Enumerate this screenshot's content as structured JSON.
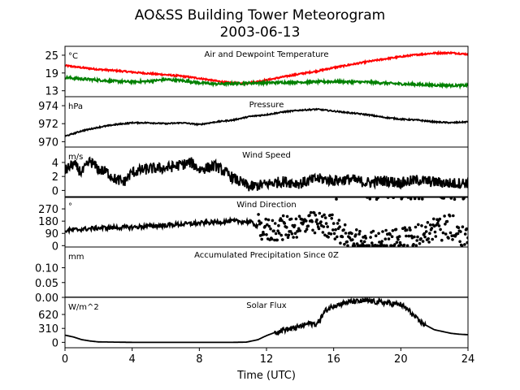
{
  "figure": {
    "title_line1": "AO&SS Building Tower Meteorogram",
    "title_line2": "2003-06-13",
    "xlabel": "Time (UTC)",
    "colors": {
      "temperature": "#ff0000",
      "dewpoint": "#008000",
      "default": "#000000"
    }
  },
  "chart_data": [
    {
      "type": "line",
      "title": "Air and Dewpoint Temperature",
      "ylabel": "°C",
      "ylim": [
        11,
        28
      ],
      "yticks": [
        13,
        19,
        25
      ],
      "xlim": [
        0,
        24
      ],
      "series": [
        {
          "color": "#ff0000",
          "x": [
            0,
            1,
            2,
            3,
            4,
            5,
            6,
            7,
            8,
            9,
            10,
            10.5,
            11,
            12,
            13,
            14,
            15,
            16,
            17,
            18,
            19,
            20,
            21,
            22,
            23,
            24
          ],
          "values": [
            21.5,
            20.8,
            20.2,
            19.8,
            19.3,
            18.8,
            18.4,
            17.9,
            17.2,
            16.3,
            15.6,
            15.4,
            15.7,
            16.6,
            17.7,
            18.7,
            19.6,
            20.8,
            21.8,
            22.8,
            23.7,
            24.5,
            25.2,
            25.7,
            25.8,
            25.3
          ],
          "noise": 0.25
        },
        {
          "color": "#008000",
          "x": [
            0,
            1,
            2,
            3,
            4,
            5,
            6,
            7,
            8,
            9,
            10,
            11,
            12,
            13,
            14,
            15,
            16,
            17,
            18,
            19,
            20,
            21,
            22,
            23,
            24
          ],
          "values": [
            17.5,
            17.0,
            16.6,
            16.2,
            16.0,
            16.2,
            16.8,
            16.4,
            15.7,
            15.3,
            15.4,
            15.6,
            15.7,
            15.8,
            15.9,
            16.0,
            16.1,
            16.0,
            15.9,
            15.6,
            15.3,
            15.1,
            14.9,
            14.8,
            14.8
          ],
          "noise": 0.4
        }
      ]
    },
    {
      "type": "line",
      "title": "Pressure",
      "ylabel": "hPa",
      "ylim": [
        969.4,
        975.0
      ],
      "yticks": [
        970,
        972,
        974
      ],
      "xlim": [
        0,
        24
      ],
      "series": [
        {
          "color": "#000000",
          "x": [
            0,
            1,
            2,
            3,
            4,
            5,
            6,
            7,
            8,
            9,
            10,
            11,
            12,
            13,
            14,
            15,
            16,
            17,
            18,
            19,
            20,
            21,
            22,
            23,
            24
          ],
          "values": [
            970.6,
            971.2,
            971.6,
            971.9,
            972.1,
            972.1,
            972.0,
            972.1,
            971.9,
            972.2,
            972.4,
            972.8,
            973.0,
            973.3,
            973.5,
            973.6,
            973.4,
            973.2,
            973.0,
            972.7,
            972.5,
            972.4,
            972.2,
            972.1,
            972.2
          ],
          "noise": 0.07
        }
      ]
    },
    {
      "type": "line",
      "title": "Wind Speed",
      "ylabel": "m/s",
      "ylim": [
        -1,
        6.2
      ],
      "yticks": [
        0,
        2,
        4
      ],
      "xlim": [
        0,
        24
      ],
      "series": [
        {
          "color": "#000000",
          "x": [
            0,
            0.5,
            1,
            1.5,
            2,
            2.5,
            3,
            3.5,
            4,
            5,
            6,
            7,
            7.5,
            8,
            9,
            10,
            11,
            12,
            13,
            14,
            15,
            16,
            17,
            18,
            19,
            20,
            21,
            22,
            23,
            24
          ],
          "values": [
            2.8,
            3.8,
            2.5,
            4.2,
            3.0,
            2.6,
            1.6,
            1.2,
            2.6,
            3.1,
            3.2,
            3.7,
            4.0,
            3.0,
            3.5,
            1.8,
            0.5,
            0.9,
            1.3,
            1.0,
            1.7,
            1.4,
            1.6,
            1.1,
            1.4,
            1.1,
            1.5,
            1.2,
            1.0,
            1.1
          ],
          "noise": 0.8
        }
      ]
    },
    {
      "type": "scatter",
      "title": "Wind Direction",
      "ylabel": "°",
      "ylim": [
        -10,
        360
      ],
      "yticks": [
        0,
        90,
        180,
        270
      ],
      "xlim": [
        0,
        24
      ],
      "series": [
        {
          "color": "#000000",
          "x": [
            0,
            2,
            4,
            6,
            8,
            10,
            11,
            12,
            13,
            14,
            15,
            16,
            17,
            18,
            19,
            20,
            21,
            22,
            23,
            24
          ],
          "values": [
            110,
            130,
            135,
            150,
            165,
            180,
            175,
            110,
            130,
            150,
            160,
            140,
            40,
            30,
            30,
            40,
            70,
            120,
            140,
            60
          ],
          "spread": 25,
          "scatter_from": 11.5
        }
      ]
    },
    {
      "type": "line",
      "title": "Accumulated Precipitation Since 0Z",
      "ylabel": "mm",
      "ylim": [
        0,
        0.17
      ],
      "yticks": [
        0.0,
        0.05,
        0.1
      ],
      "ytick_labels": [
        "0.00",
        "0.05",
        "0.10"
      ],
      "xlim": [
        0,
        24
      ],
      "series": [
        {
          "color": "#000000",
          "x": [
            0,
            24
          ],
          "values": [
            0,
            0
          ],
          "noise": 0
        }
      ]
    },
    {
      "type": "line",
      "title": "Solar Flux",
      "ylabel": "W/m^2",
      "ylim": [
        -120,
        1000
      ],
      "yticks": [
        0,
        310,
        620
      ],
      "xlim": [
        0,
        24
      ],
      "xticks": [
        0,
        4,
        8,
        12,
        16,
        20,
        24
      ],
      "series": [
        {
          "color": "#000000",
          "x": [
            0,
            0.5,
            1,
            1.5,
            2,
            4,
            6,
            8,
            10,
            10.8,
            11.5,
            12,
            12.5,
            13,
            13.5,
            14,
            14.5,
            15,
            15.5,
            16,
            16.5,
            17,
            17.5,
            18,
            18.5,
            19,
            19.5,
            20,
            20.5,
            21,
            21.5,
            22,
            22.5,
            23,
            23.5,
            24
          ],
          "values": [
            160,
            120,
            60,
            30,
            10,
            0,
            0,
            0,
            0,
            5,
            60,
            150,
            220,
            280,
            300,
            350,
            420,
            400,
            700,
            820,
            860,
            900,
            910,
            920,
            900,
            880,
            860,
            840,
            700,
            500,
            380,
            280,
            240,
            200,
            180,
            170
          ],
          "noise": 60,
          "noise_from": 12.5,
          "noise_to": 21.5
        }
      ]
    }
  ]
}
